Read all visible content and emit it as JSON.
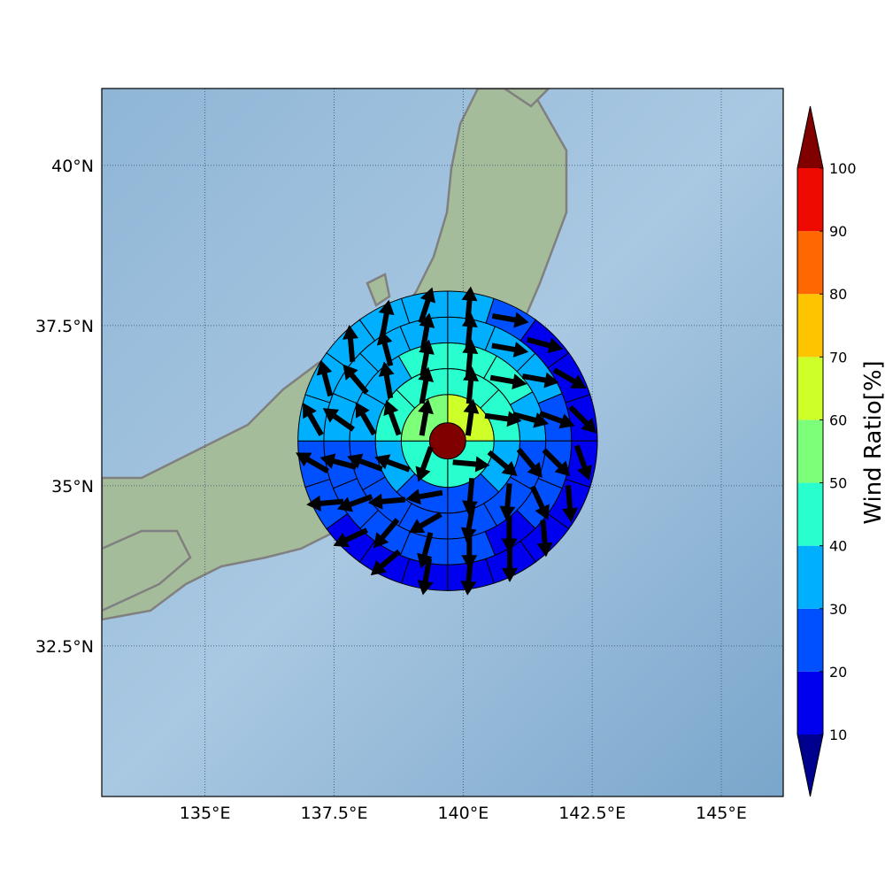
{
  "chart_data": {
    "type": "heatmap",
    "subtype": "polar-sector-map-with-wind-vectors",
    "x_axis": {
      "ticks": [
        135,
        137.5,
        140,
        142.5,
        145
      ],
      "tick_labels": [
        "135°E",
        "137.5°E",
        "140°E",
        "142.5°E",
        "145°E"
      ],
      "range": [
        133.0,
        146.2
      ]
    },
    "y_axis": {
      "ticks": [
        32.5,
        35,
        37.5,
        40
      ],
      "tick_labels": [
        "32.5°N",
        "35°N",
        "37.5°N",
        "40°N"
      ],
      "range": [
        30.15,
        41.2
      ]
    },
    "grid": true,
    "center": {
      "lon": 139.7,
      "lat": 35.7
    },
    "ring_edges_deg": [
      0.35,
      0.9,
      1.4,
      1.9,
      2.4,
      2.9
    ],
    "sectors": [
      4,
      8,
      12,
      16,
      20
    ],
    "center_value": 100,
    "ring_values": [
      [
        60,
        40,
        40,
        50
      ],
      [
        40,
        40,
        30,
        20,
        20,
        30,
        40,
        40
      ],
      [
        40,
        40,
        30,
        20,
        20,
        20,
        20,
        20,
        20,
        30,
        30,
        40
      ],
      [
        30,
        30,
        30,
        20,
        20,
        20,
        10,
        20,
        20,
        20,
        20,
        20,
        30,
        30,
        30,
        30
      ],
      [
        30,
        20,
        10,
        10,
        10,
        10,
        10,
        10,
        10,
        10,
        10,
        10,
        10,
        20,
        20,
        30,
        30,
        30,
        30,
        30
      ]
    ],
    "wind_dir_deg": [
      [
        8,
        95,
        200,
        10
      ],
      [
        5,
        98,
        130,
        185,
        260,
        290,
        340,
        10
      ],
      [
        5,
        100,
        105,
        140,
        185,
        190,
        240,
        265,
        290,
        330,
        350,
        10
      ],
      [
        5,
        100,
        100,
        110,
        135,
        155,
        180,
        180,
        195,
        220,
        250,
        285,
        305,
        320,
        345,
        10
      ],
      [
        5,
        100,
        105,
        120,
        135,
        160,
        175,
        175,
        180,
        185,
        190,
        230,
        245,
        265,
        300,
        330,
        345,
        355,
        10,
        18
      ]
    ],
    "colorbar": {
      "label": "Wind Ratio[%]",
      "ticks": [
        10,
        20,
        30,
        40,
        50,
        60,
        70,
        80,
        90,
        100
      ],
      "levels": [
        10,
        20,
        30,
        40,
        50,
        60,
        70,
        80,
        90,
        100
      ],
      "colors": [
        "#0000ee",
        "#0050ff",
        "#00b0ff",
        "#29ffce",
        "#7dff7a",
        "#ceff29",
        "#ffc400",
        "#ff6800",
        "#ee0a00"
      ],
      "under_color": "#00008f",
      "over_color": "#800000",
      "extend": "both"
    },
    "land_color": "#9fb896",
    "sea_color": "#8db4d4",
    "coastline_color": "#808080"
  }
}
